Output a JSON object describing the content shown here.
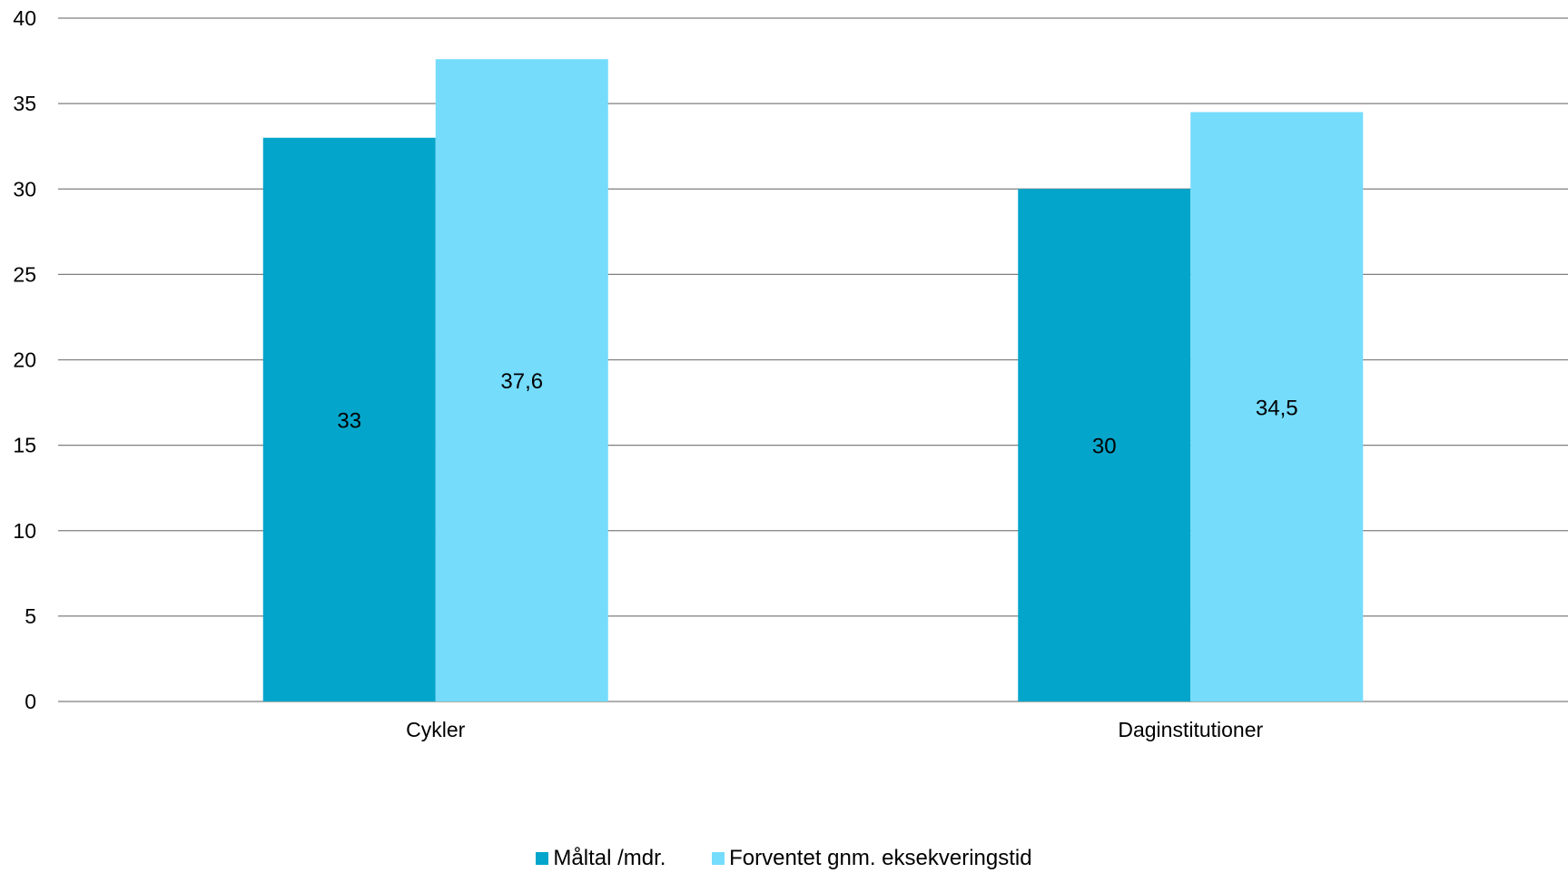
{
  "chart_data": {
    "type": "bar",
    "title": "",
    "xlabel": "",
    "ylabel": "",
    "categories": [
      "Cykler",
      "Daginstitutioner"
    ],
    "series": [
      {
        "name": "Måltal /mdr.",
        "values": [
          33,
          30
        ],
        "labels": [
          "33",
          "30"
        ],
        "color": "#04a5cb"
      },
      {
        "name": "Forventet gnm. eksekveringstid",
        "values": [
          37.6,
          34.5
        ],
        "labels": [
          "37,6",
          "34,5"
        ],
        "color": "#75dcfc"
      }
    ],
    "ylim": [
      0,
      40
    ],
    "yticks": [
      0,
      5,
      10,
      15,
      20,
      25,
      30,
      35,
      40
    ],
    "grid": true,
    "legend_position": "bottom",
    "gridline_color": "#7f7f7f"
  }
}
